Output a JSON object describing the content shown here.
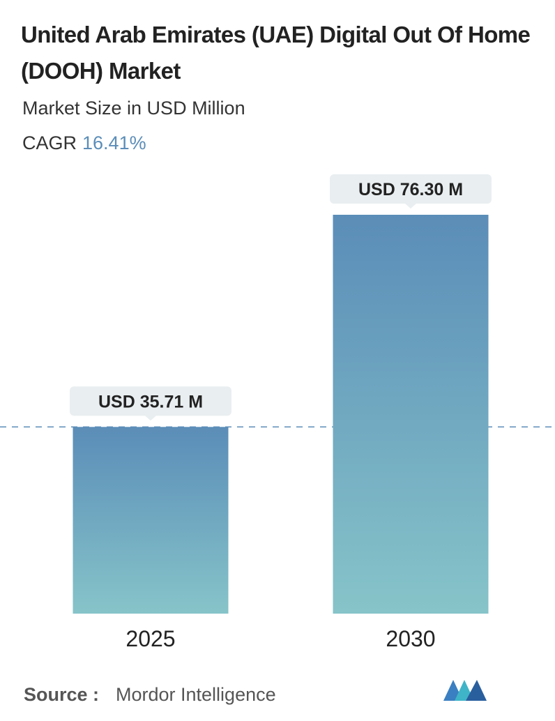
{
  "chart_data": {
    "type": "bar",
    "title": "United Arab Emirates (UAE) Digital Out Of Home (DOOH) Market",
    "subtitle": "Market Size in USD Million",
    "cagr_label": "CAGR",
    "cagr": "16.41%",
    "categories": [
      "2025",
      "2030"
    ],
    "values": [
      35.71,
      76.3
    ],
    "value_labels": [
      "USD 35.71 M",
      "USD 76.30 M"
    ],
    "colors": [
      "#5b8db8",
      "#86c4c9"
    ],
    "source_label": "Source :",
    "source": "Mordor Intelligence"
  }
}
